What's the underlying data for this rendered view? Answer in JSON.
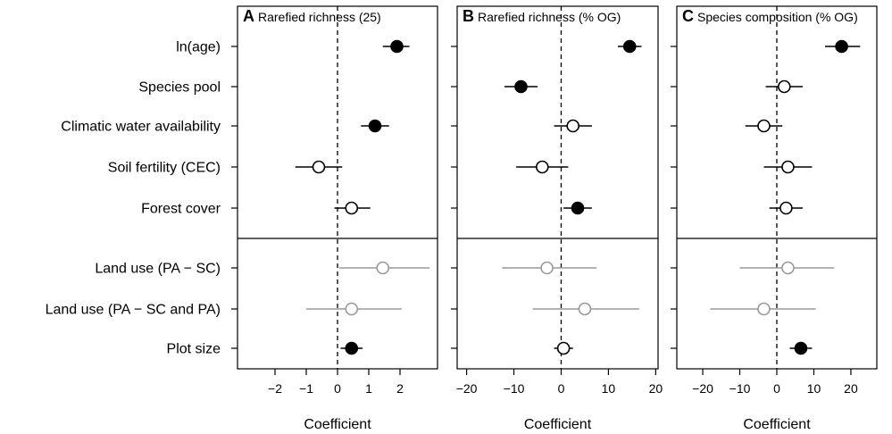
{
  "chart_data": {
    "type": "forest",
    "row_labels": [
      "ln(age)",
      "Species pool",
      "Climatic water availability",
      "Soil fertility (CEC)",
      "Forest cover",
      "Land use (PA − SC)",
      "Land use (PA − SC and PA)",
      "Plot size"
    ],
    "colors": {
      "significant": "#000000",
      "not_significant": "#000000",
      "land_use": "#999999"
    },
    "panels": [
      {
        "letter": "A",
        "title": "Rarefied richness (25)",
        "xlabel": "Coefficient",
        "xlim": [
          -3.2,
          3.2
        ],
        "ticks": [
          -2,
          -1,
          0,
          1,
          2
        ],
        "tick_labels": [
          "−2",
          "−1",
          "0",
          "1",
          "2"
        ],
        "points": [
          {
            "row": 0,
            "est": 1.9,
            "lo": 1.45,
            "hi": 2.3,
            "style": "filled"
          },
          {
            "row": 2,
            "est": 1.2,
            "lo": 0.75,
            "hi": 1.65,
            "style": "filled"
          },
          {
            "row": 3,
            "est": -0.6,
            "lo": -1.35,
            "hi": 0.15,
            "style": "open"
          },
          {
            "row": 4,
            "est": 0.45,
            "lo": -0.1,
            "hi": 1.05,
            "style": "open"
          },
          {
            "row": 5,
            "est": 1.45,
            "lo": 0.05,
            "hi": 2.95,
            "style": "grey"
          },
          {
            "row": 6,
            "est": 0.45,
            "lo": -1.0,
            "hi": 2.05,
            "style": "grey"
          },
          {
            "row": 7,
            "est": 0.45,
            "lo": 0.1,
            "hi": 0.8,
            "style": "filled"
          }
        ]
      },
      {
        "letter": "B",
        "title": "Rarefied richness (% OG)",
        "xlabel": "Coefficient",
        "xlim": [
          -22,
          20.5
        ],
        "ticks": [
          -20,
          -10,
          0,
          10,
          20
        ],
        "tick_labels": [
          "−20",
          "−10",
          "0",
          "10",
          "20"
        ],
        "points": [
          {
            "row": 0,
            "est": 14.5,
            "lo": 12.0,
            "hi": 17.0,
            "style": "filled"
          },
          {
            "row": 1,
            "est": -8.5,
            "lo": -12.0,
            "hi": -5.0,
            "style": "filled"
          },
          {
            "row": 2,
            "est": 2.5,
            "lo": -1.5,
            "hi": 6.5,
            "style": "open"
          },
          {
            "row": 3,
            "est": -4.0,
            "lo": -9.5,
            "hi": 1.5,
            "style": "open"
          },
          {
            "row": 4,
            "est": 3.5,
            "lo": 0.5,
            "hi": 6.5,
            "style": "filled"
          },
          {
            "row": 5,
            "est": -3.0,
            "lo": -12.5,
            "hi": 7.5,
            "style": "grey"
          },
          {
            "row": 6,
            "est": 5.0,
            "lo": -6.0,
            "hi": 16.5,
            "style": "grey"
          },
          {
            "row": 7,
            "est": 0.5,
            "lo": -1.5,
            "hi": 2.5,
            "style": "open"
          }
        ]
      },
      {
        "letter": "C",
        "title": "Species composition (% OG)",
        "xlabel": "Coefficient",
        "xlim": [
          -27,
          27
        ],
        "ticks": [
          -20,
          -10,
          0,
          10,
          20
        ],
        "tick_labels": [
          "−20",
          "−10",
          "0",
          "10",
          "20"
        ],
        "points": [
          {
            "row": 0,
            "est": 17.5,
            "lo": 13.0,
            "hi": 22.5,
            "style": "filled"
          },
          {
            "row": 1,
            "est": 2.0,
            "lo": -3.0,
            "hi": 7.0,
            "style": "open"
          },
          {
            "row": 2,
            "est": -3.5,
            "lo": -8.5,
            "hi": 1.5,
            "style": "open"
          },
          {
            "row": 3,
            "est": 3.0,
            "lo": -3.5,
            "hi": 9.5,
            "style": "open"
          },
          {
            "row": 4,
            "est": 2.5,
            "lo": -2.0,
            "hi": 7.0,
            "style": "open"
          },
          {
            "row": 5,
            "est": 3.0,
            "lo": -10.0,
            "hi": 15.5,
            "style": "grey"
          },
          {
            "row": 6,
            "est": -3.5,
            "lo": -18.0,
            "hi": 10.5,
            "style": "grey"
          },
          {
            "row": 7,
            "est": 6.5,
            "lo": 3.5,
            "hi": 9.5,
            "style": "filled"
          }
        ]
      }
    ]
  }
}
